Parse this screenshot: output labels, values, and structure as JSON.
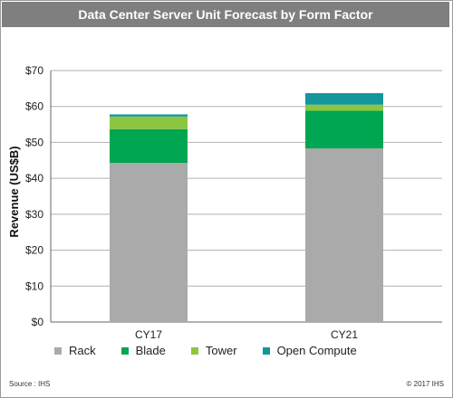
{
  "chart_data": {
    "type": "bar",
    "stacked": true,
    "title": "Data Center Server Unit Forecast by Form Factor",
    "ylabel": "Revenue (US$B)",
    "xlabel": "",
    "ylim": [
      0,
      70
    ],
    "yticks": [
      "$0",
      "$10",
      "$20",
      "$30",
      "$40",
      "$50",
      "$60",
      "$70"
    ],
    "ytick_values": [
      0,
      10,
      20,
      30,
      40,
      50,
      60,
      70
    ],
    "grid": true,
    "legend_position": "bottom",
    "categories": [
      "CY17",
      "CY21"
    ],
    "series": [
      {
        "name": "Rack",
        "color": "#aaaaaa",
        "values": [
          44.3,
          48.3
        ]
      },
      {
        "name": "Blade",
        "color": "#00a651",
        "values": [
          9.4,
          10.5
        ]
      },
      {
        "name": "Tower",
        "color": "#8cc63f",
        "values": [
          3.5,
          1.7
        ]
      },
      {
        "name": "Open Compute",
        "color": "#13969c",
        "values": [
          0.6,
          3.2
        ]
      }
    ]
  },
  "footer": {
    "source": "Source : IHS",
    "copyright": "© 2017 IHS"
  }
}
